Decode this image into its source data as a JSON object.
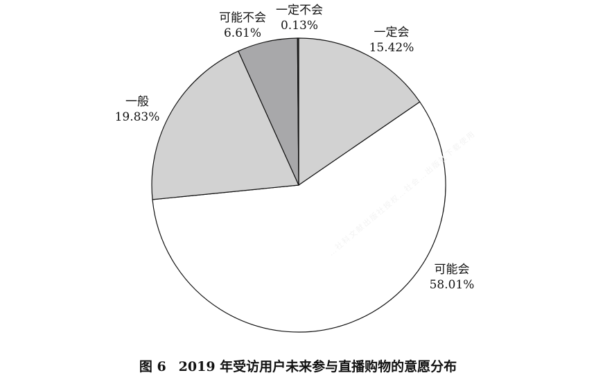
{
  "chart_data": {
    "type": "pie",
    "slices": [
      {
        "label": "一定会",
        "value": 15.42,
        "value_text": "15.42%",
        "color": "#d2d2d2"
      },
      {
        "label": "可能会",
        "value": 58.01,
        "value_text": "58.01%",
        "color": "#ffffff"
      },
      {
        "label": "一般",
        "value": 19.83,
        "value_text": "19.83%",
        "color": "#d2d2d2"
      },
      {
        "label": "可能不会",
        "value": 6.61,
        "value_text": "6.61%",
        "color": "#a8a8aa"
      },
      {
        "label": "一定不会",
        "value": 0.13,
        "value_text": "0.13%",
        "color": "#4a4a4a"
      }
    ]
  },
  "caption": {
    "figure_number": "图 6",
    "title": "2019 年受访用户未来参与直播购物的意愿分布"
  },
  "watermark": "…社科文献出版社授权…社会…出版社下载使用"
}
